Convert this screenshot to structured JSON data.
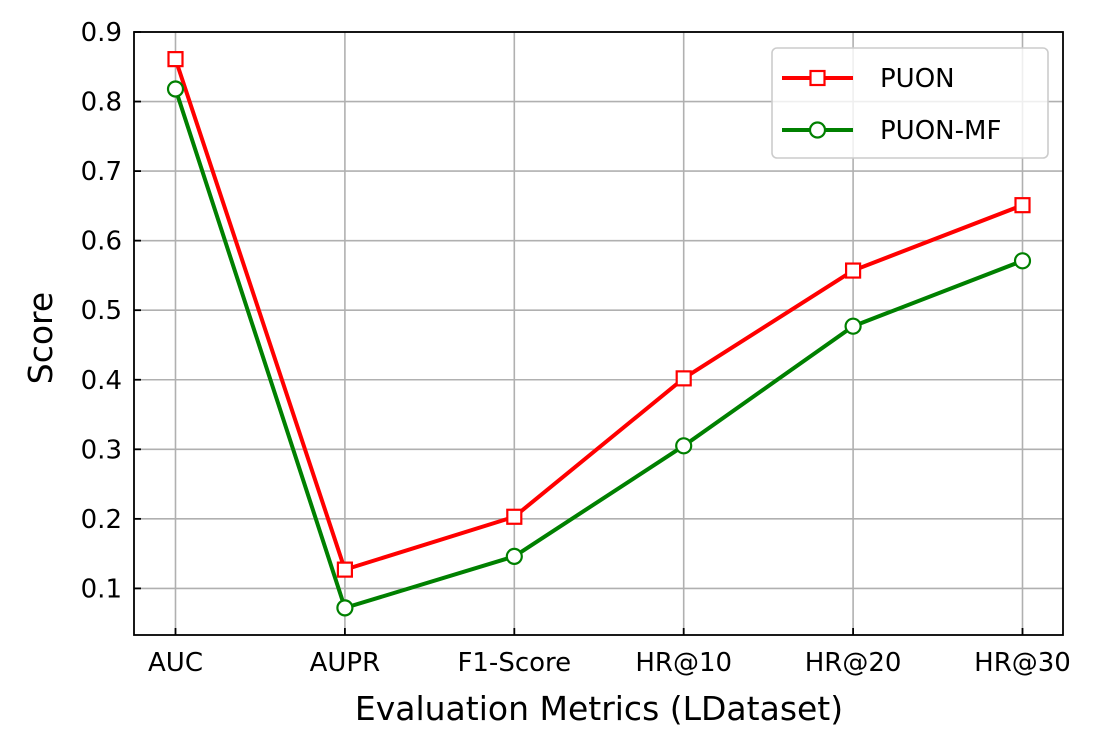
{
  "chart_data": {
    "type": "line",
    "title": "",
    "xlabel": "Evaluation Metrics (LDataset)",
    "ylabel": "Score",
    "categories": [
      "AUC",
      "AUPR",
      "F1-Score",
      "HR@10",
      "HR@20",
      "HR@30"
    ],
    "ylim": [
      0.033,
      0.9
    ],
    "yticks": [
      "0.1",
      "0.2",
      "0.3",
      "0.4",
      "0.5",
      "0.6",
      "0.7",
      "0.8",
      "0.9"
    ],
    "grid": true,
    "legend_position": "top-right",
    "series": [
      {
        "name": "PUON",
        "color": "#ff0000",
        "marker": "square",
        "values": [
          0.861,
          0.127,
          0.203,
          0.402,
          0.557,
          0.651
        ]
      },
      {
        "name": "PUON-MF",
        "color": "#008000",
        "marker": "circle",
        "values": [
          0.818,
          0.072,
          0.146,
          0.305,
          0.477,
          0.571
        ]
      }
    ]
  }
}
